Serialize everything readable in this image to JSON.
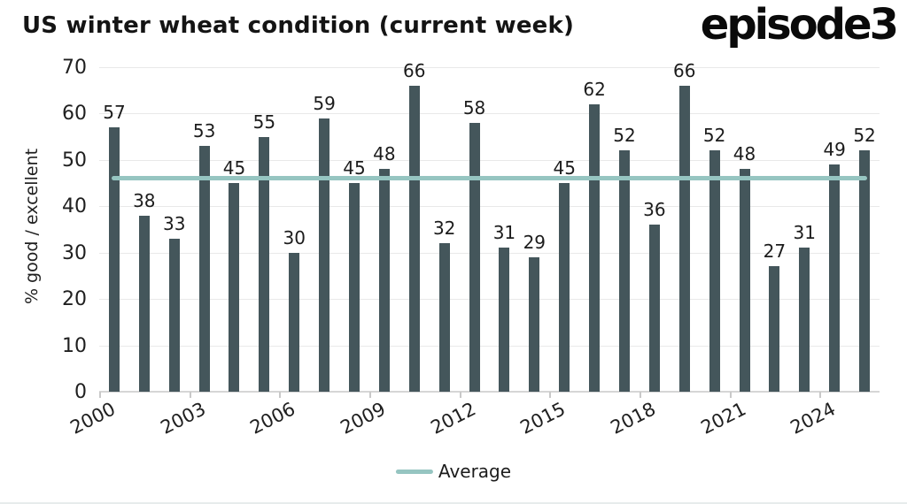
{
  "branding": {
    "logo_text": "episode3"
  },
  "legend": {
    "average_label": "Average"
  },
  "chart_data": {
    "type": "bar",
    "title": "US winter wheat condition (current week)",
    "xlabel": "",
    "ylabel": "% good / excellent",
    "categories": [
      2000,
      2001,
      2002,
      2003,
      2004,
      2005,
      2006,
      2007,
      2008,
      2009,
      2010,
      2011,
      2012,
      2013,
      2014,
      2015,
      2016,
      2017,
      2018,
      2019,
      2020,
      2021,
      2022,
      2023,
      2024,
      2025
    ],
    "values": [
      57,
      38,
      33,
      53,
      45,
      55,
      30,
      59,
      45,
      48,
      66,
      32,
      58,
      31,
      29,
      45,
      62,
      52,
      36,
      66,
      52,
      48,
      27,
      31,
      49,
      52
    ],
    "x_tick_labels": [
      "2000",
      "2003",
      "2006",
      "2009",
      "2012",
      "2015",
      "2018",
      "2021",
      "2024"
    ],
    "y_ticks": [
      0,
      10,
      20,
      30,
      40,
      50,
      60,
      70
    ],
    "ylim": [
      0,
      70
    ],
    "grid": "horizontal",
    "legend_position": "bottom",
    "average_line": {
      "label": "Average",
      "value": 46.1
    },
    "colors": {
      "bar": "#44565b",
      "average": "#96c5c1",
      "grid": "#e9e9e9",
      "axis": "#d6d6d6",
      "tick": "#c9c9c9",
      "text": "#1f1f1f"
    }
  }
}
